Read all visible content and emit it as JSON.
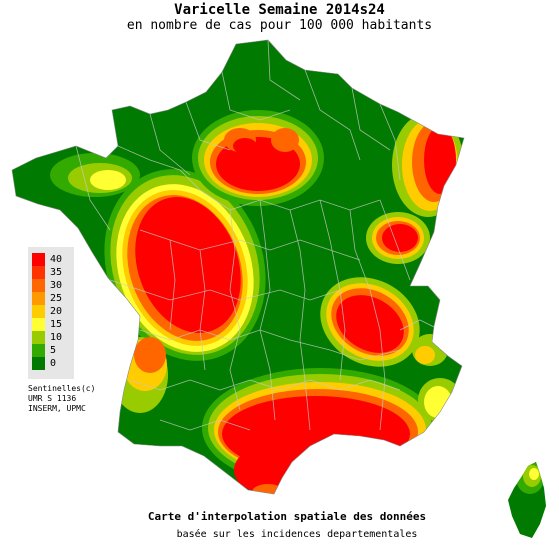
{
  "header": {
    "title": "Varicelle Semaine 2014s24",
    "subtitle": "en nombre de cas pour 100 000 habitants"
  },
  "legend": {
    "items": [
      {
        "label": "40",
        "color": "#ff0000"
      },
      {
        "label": "35",
        "color": "#ff3300"
      },
      {
        "label": "30",
        "color": "#ff6600"
      },
      {
        "label": "25",
        "color": "#ff9900"
      },
      {
        "label": "20",
        "color": "#ffcc00"
      },
      {
        "label": "15",
        "color": "#ffff33"
      },
      {
        "label": "10",
        "color": "#99cc00"
      },
      {
        "label": "5",
        "color": "#33aa00"
      },
      {
        "label": "0",
        "color": "#007a00"
      }
    ]
  },
  "credits": {
    "line1": "Sentinelles(c)",
    "line2": "UMR S 1136",
    "line3": "INSERM, UPMC"
  },
  "footer": {
    "line1": "Carte d'interpolation spatiale des données",
    "line2": "basée sur les incidences departementales"
  }
}
